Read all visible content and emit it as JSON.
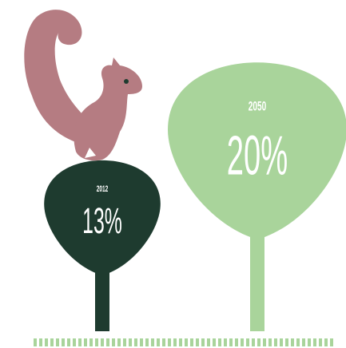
{
  "chart_data": {
    "type": "tree",
    "categories": [
      "2012",
      "2050"
    ],
    "values": [
      13,
      20
    ],
    "value_labels": [
      "13%",
      "20%"
    ],
    "colors": [
      "#1e3b2f",
      "#a9d49b"
    ]
  }
}
